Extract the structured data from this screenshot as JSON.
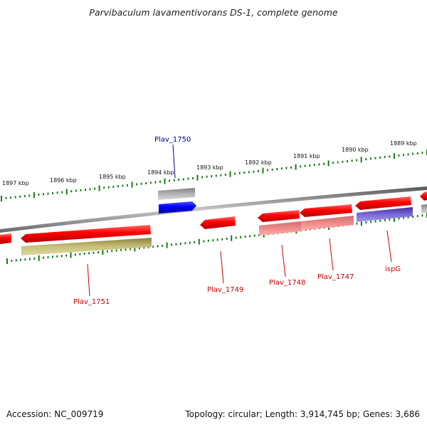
{
  "title": "Parvibaculum lavamentivorans DS-1, complete genome",
  "footer": {
    "accession": "Accession: NC_009719",
    "summary": "Topology: circular; Length: 3,914,745 bp; Genes: 3,686"
  },
  "colors": {
    "forward_gene": "#ff0000",
    "reverse_gene": "#ff0000",
    "selected_gene": "#0000ff",
    "highlight_label": "#00008b",
    "gene_label": "#cc0000",
    "tick": "#1a7a1a",
    "backbone": "#888888",
    "cds_default": "#ff8080",
    "cds_olive": "#c8c07a",
    "cds_purple": "#7a6ad8",
    "cds_gray": "#b0b0b0"
  },
  "scale_labels": [
    "1897 kbp",
    "1896 kbp",
    "1895 kbp",
    "1894 kbp",
    "1893 kbp",
    "1892 kbp",
    "1891 kbp",
    "1890 kbp",
    "1889 kbp"
  ],
  "gene_labels": [
    {
      "name": "Plav_1750",
      "style": "highlight"
    },
    {
      "name": "Plav_1751",
      "style": "normal"
    },
    {
      "name": "Plav_1749",
      "style": "normal"
    },
    {
      "name": "Plav_1748",
      "style": "normal"
    },
    {
      "name": "Plav_1747",
      "style": "normal"
    },
    {
      "name": "ispG",
      "style": "normal"
    }
  ]
}
